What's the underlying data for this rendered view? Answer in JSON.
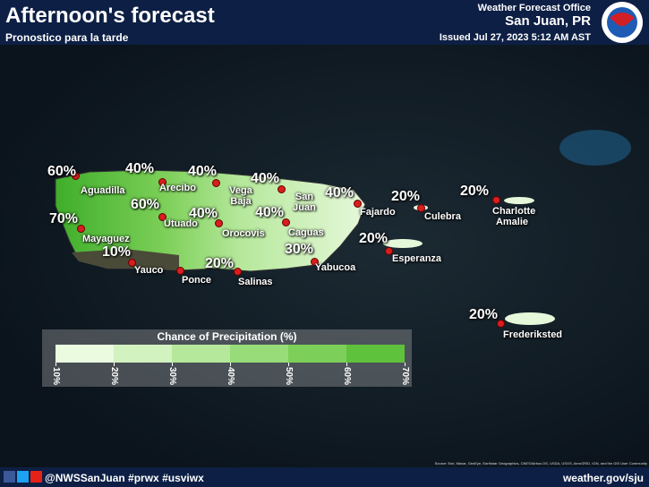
{
  "header": {
    "title": "Afternoon's forecast",
    "subtitle": "Pronostico para la tarde",
    "office": "Weather Forecast Office",
    "location": "San Juan, PR",
    "issued": "Issued Jul 27, 2023 5:12 AM AST"
  },
  "locations": [
    {
      "name": "Aguadilla",
      "chance": "60%"
    },
    {
      "name": "Arecibo",
      "chance": "40%"
    },
    {
      "name": "Vega Baja",
      "chance": "40%"
    },
    {
      "name": "San Juan",
      "chance": "40%"
    },
    {
      "name": "Fajardo",
      "chance": "40%"
    },
    {
      "name": "Culebra",
      "chance": "20%"
    },
    {
      "name": "Charlotte Amalie",
      "chance": "20%"
    },
    {
      "name": "Mayaguez",
      "chance": "70%"
    },
    {
      "name": "Utuado",
      "chance": "60%"
    },
    {
      "name": "Orocovis",
      "chance": "40%"
    },
    {
      "name": "Caguas",
      "chance": "40%"
    },
    {
      "name": "Yabucoa",
      "chance": "30%"
    },
    {
      "name": "Esperanza",
      "chance": "20%"
    },
    {
      "name": "Yauco",
      "chance": "10%"
    },
    {
      "name": "Ponce"
    },
    {
      "name": "Salinas",
      "chance": "20%"
    },
    {
      "name": "Frederiksted",
      "chance": "20%"
    }
  ],
  "legend": {
    "title": "Chance of Precipitation (%)",
    "labels": [
      "10%",
      "20%",
      "30%",
      "40%",
      "50%",
      "60%",
      "70%"
    ]
  },
  "footer": {
    "source": "Source: Esri, Maxar, GeoEye, Earthstar Geographics, CNES/Airbus DS, USDA, USGS, AeroGRID, IGN, and the GIS User Community",
    "social": "@NWSSanJuan #prwx #usviwx",
    "website": "weather.gov/sju"
  }
}
